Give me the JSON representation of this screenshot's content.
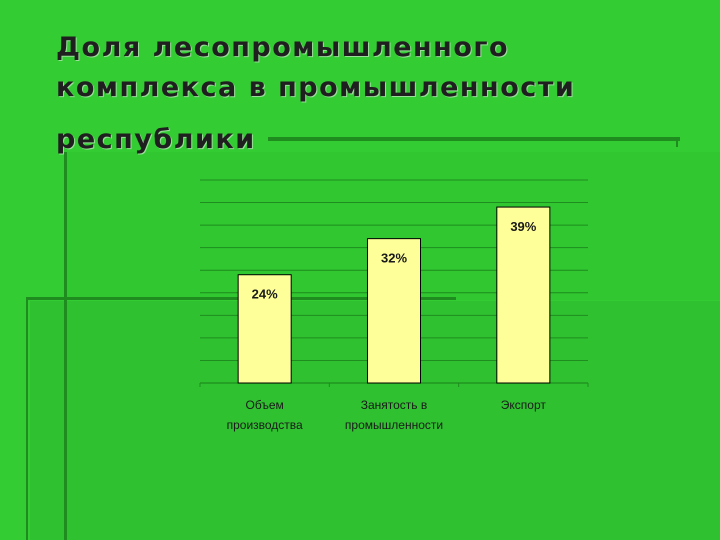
{
  "title": {
    "line1": "Доля лесопромышленного",
    "line2": "комплекса в промышленности",
    "line3": "республики"
  },
  "colors": {
    "background": "#33cc33",
    "bar_fill": "#ffff99",
    "bar_stroke": "#000000",
    "gridline": "#1e8c1e"
  },
  "chart_data": {
    "type": "bar",
    "categories": [
      [
        "Объем",
        "производства"
      ],
      [
        "Занятость в",
        "промышленности"
      ],
      [
        "Экспорт"
      ]
    ],
    "values": [
      24,
      32,
      39
    ],
    "data_labels": [
      "24%",
      "32%",
      "39%"
    ],
    "ylim": [
      0,
      45
    ],
    "grid": true,
    "legend": "none"
  }
}
